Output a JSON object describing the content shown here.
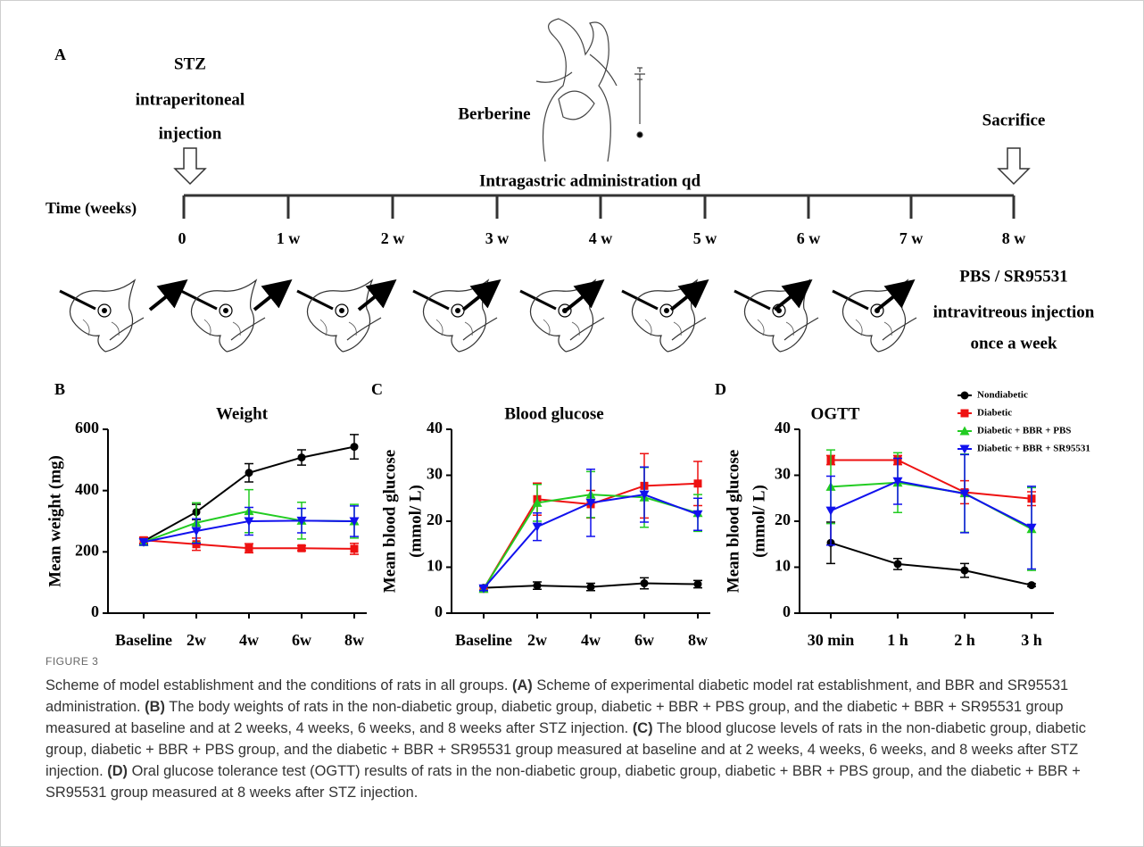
{
  "panel_a": {
    "label": "A",
    "stz": [
      "STZ",
      "intraperitoneal",
      "injection"
    ],
    "berberine": "Berberine",
    "intragastric": "Intragastric administration qd",
    "sacrifice": "Sacrifice",
    "time_label": "Time (weeks)",
    "ticks": [
      "0",
      "1 w",
      "2 w",
      "3 w",
      "4 w",
      "5 w",
      "6 w",
      "7 w",
      "8 w"
    ],
    "injection": [
      "PBS / SR95531",
      "intravitreous injection",
      "once a week"
    ]
  },
  "chart_data": [
    {
      "type": "line",
      "label": "B",
      "title": "Weight",
      "ylabel": [
        "Mean weight (mg)"
      ],
      "categories": [
        "Baseline",
        "2w",
        "4w",
        "6w",
        "8w"
      ],
      "ylim": [
        0,
        600
      ],
      "yticks": [
        0,
        200,
        400,
        600
      ],
      "series": [
        {
          "name": "Nondiabetic",
          "color": "#000000",
          "marker": "circle",
          "values": [
            235,
            330,
            458,
            508,
            543
          ],
          "errors": [
            10,
            25,
            30,
            25,
            40
          ]
        },
        {
          "name": "Diabetic",
          "color": "#ee1111",
          "marker": "square",
          "values": [
            238,
            225,
            212,
            212,
            210
          ],
          "errors": [
            10,
            20,
            15,
            8,
            18
          ]
        },
        {
          "name": "Diabetic + BBR + PBS",
          "color": "#22cc22",
          "marker": "triangle-up",
          "values": [
            232,
            295,
            333,
            302,
            300
          ],
          "errors": [
            10,
            65,
            70,
            60,
            55
          ]
        },
        {
          "name": "Diabetic + BBR + SR95531",
          "color": "#1111ee",
          "marker": "triangle-down",
          "values": [
            232,
            268,
            300,
            302,
            300
          ],
          "errors": [
            10,
            40,
            45,
            40,
            50
          ]
        }
      ]
    },
    {
      "type": "line",
      "label": "C",
      "title": "Blood glucose",
      "ylabel": [
        "Mean blood glucose",
        "(mmol/ L)"
      ],
      "categories": [
        "Baseline",
        "2w",
        "4w",
        "6w",
        "8w"
      ],
      "ylim": [
        0,
        40
      ],
      "yticks": [
        0,
        10,
        20,
        30,
        40
      ],
      "series": [
        {
          "name": "Nondiabetic",
          "color": "#000000",
          "marker": "circle",
          "values": [
            5.5,
            6,
            5.7,
            6.5,
            6.3
          ],
          "errors": [
            0.5,
            0.8,
            0.8,
            1.2,
            0.8
          ]
        },
        {
          "name": "Diabetic",
          "color": "#ee1111",
          "marker": "square",
          "values": [
            5.3,
            24.8,
            23.7,
            27.7,
            28.2
          ],
          "errors": [
            0.5,
            3.5,
            3,
            7,
            4.8
          ]
        },
        {
          "name": "Diabetic + BBR + PBS",
          "color": "#22cc22",
          "marker": "triangle-up",
          "values": [
            5.3,
            24,
            25.8,
            25.2,
            21.8
          ],
          "errors": [
            0.5,
            4,
            5,
            6.5,
            4
          ]
        },
        {
          "name": "Diabetic + BBR + SR95531",
          "color": "#1111ee",
          "marker": "triangle-down",
          "values": [
            5.4,
            18.8,
            24,
            25.8,
            21.5
          ],
          "errors": [
            0.5,
            3,
            7.3,
            6,
            3.5
          ]
        }
      ]
    },
    {
      "type": "line",
      "label": "D",
      "title": "OGTT",
      "ylabel": [
        "Mean blood glucose",
        "(mmol/ L)"
      ],
      "categories": [
        "30 min",
        "1 h",
        "2 h",
        "3 h"
      ],
      "ylim": [
        0,
        40
      ],
      "yticks": [
        0,
        10,
        20,
        30,
        40
      ],
      "legend": "upper right",
      "series": [
        {
          "name": "Nondiabetic",
          "color": "#000000",
          "marker": "circle",
          "values": [
            15.3,
            10.7,
            9.3,
            6.1
          ],
          "errors": [
            4.5,
            1.2,
            1.5,
            0.3
          ]
        },
        {
          "name": "Diabetic",
          "color": "#ee1111",
          "marker": "square",
          "values": [
            33.3,
            33.3,
            26.3,
            24.9
          ],
          "errors": [
            1,
            1,
            2.5,
            1.5
          ]
        },
        {
          "name": "Diabetic + BBR + PBS",
          "color": "#22cc22",
          "marker": "triangle-up",
          "values": [
            27.5,
            28.4,
            26.1,
            18.3
          ],
          "errors": [
            8,
            6.5,
            8.5,
            9
          ]
        },
        {
          "name": "Diabetic + BBR + SR95531",
          "color": "#1111ee",
          "marker": "triangle-down",
          "values": [
            22.3,
            28.7,
            26.0,
            18.6
          ],
          "errors": [
            7.5,
            5,
            8.5,
            9
          ]
        }
      ]
    }
  ],
  "caption": {
    "figure": "FIGURE 3",
    "intro": "Scheme of model establishment and the conditions of rats in all groups.",
    "panels": [
      {
        "label": "(A)",
        "text": "Scheme of experimental diabetic model rat establishment, and BBR and SR95531 administration."
      },
      {
        "label": "(B)",
        "text": "The body weights of rats in the non-diabetic group, diabetic group, diabetic + BBR + PBS group, and the diabetic + BBR + SR95531 group measured at baseline and at 2 weeks, 4 weeks, 6 weeks, and 8 weeks after STZ injection."
      },
      {
        "label": "(C)",
        "text": "The blood glucose levels of rats in the non-diabetic group, diabetic group, diabetic + BBR + PBS group, and the diabetic + BBR + SR95531 group measured at baseline and at 2 weeks, 4 weeks, 6 weeks, and 8 weeks after STZ injection."
      },
      {
        "label": "(D)",
        "text": "Oral glucose tolerance test (OGTT) results of rats in the non-diabetic group, diabetic group, diabetic + BBR + PBS group, and the diabetic + BBR + SR95531 group measured at 8 weeks after STZ injection."
      }
    ]
  }
}
